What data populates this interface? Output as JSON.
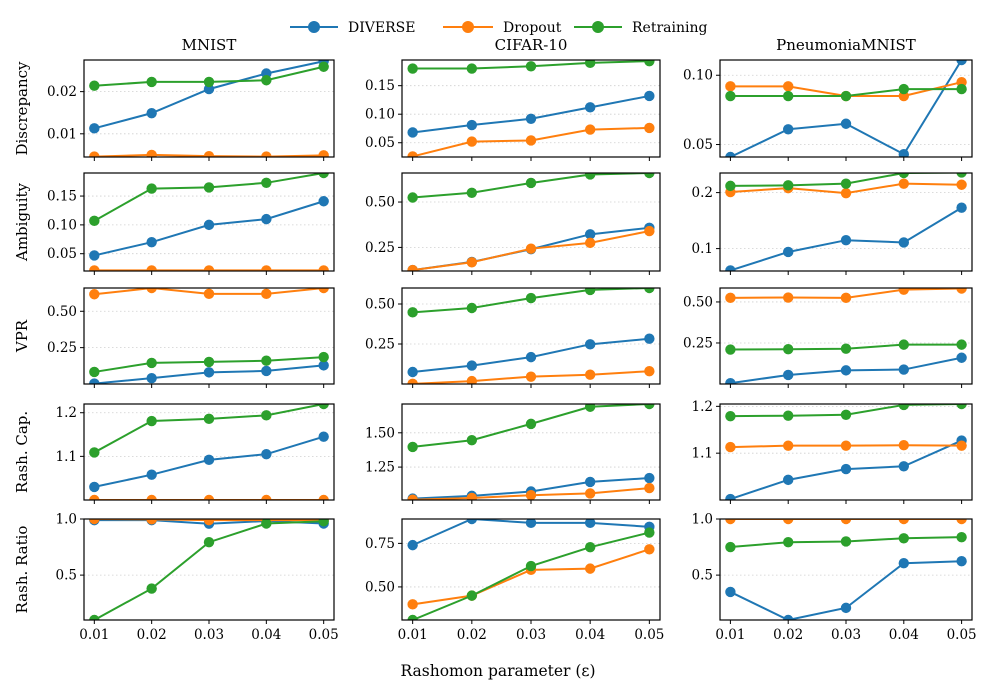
{
  "legend": {
    "placement": "top-center",
    "entries": [
      {
        "name": "DIVERSE",
        "color": "#1f77b4"
      },
      {
        "name": "Dropout",
        "color": "#ff7f0e"
      },
      {
        "name": "Retraining",
        "color": "#2ca02c"
      }
    ]
  },
  "columns": [
    "MNIST",
    "CIFAR-10",
    "PneumoniaMNIST"
  ],
  "rows": [
    "Discrepancy",
    "Ambiguity",
    "VPR",
    "Rash. Cap.",
    "Rash. Ratio"
  ],
  "xlabel": "Rashomon parameter (ε)",
  "x_ticks": [
    "0.01",
    "0.02",
    "0.03",
    "0.04",
    "0.05"
  ],
  "chart_data": [
    {
      "type": "line",
      "row": "Discrepancy",
      "column": "MNIST",
      "grid": "y-dotted",
      "x": [
        0.01,
        0.02,
        0.03,
        0.04,
        0.05
      ],
      "ylim": [
        0.0045,
        0.0275
      ],
      "yticks": [
        {
          "v": 0.01,
          "label": "0.01"
        },
        {
          "v": 0.02,
          "label": "0.02"
        }
      ],
      "series": [
        {
          "name": "DIVERSE",
          "values": [
            0.0113,
            0.0149,
            0.0206,
            0.0243,
            0.0272
          ]
        },
        {
          "name": "Dropout",
          "values": [
            0.0046,
            0.005,
            0.0047,
            0.0046,
            0.0049
          ]
        },
        {
          "name": "Retraining",
          "values": [
            0.0214,
            0.0223,
            0.0223,
            0.0227,
            0.0259
          ]
        }
      ]
    },
    {
      "type": "line",
      "row": "Discrepancy",
      "column": "CIFAR-10",
      "grid": "y-dotted",
      "x": [
        0.01,
        0.02,
        0.03,
        0.04,
        0.05
      ],
      "ylim": [
        0.025,
        0.195
      ],
      "yticks": [
        {
          "v": 0.05,
          "label": "0.05"
        },
        {
          "v": 0.1,
          "label": "0.10"
        },
        {
          "v": 0.15,
          "label": "0.15"
        }
      ],
      "series": [
        {
          "name": "DIVERSE",
          "values": [
            0.068,
            0.081,
            0.092,
            0.112,
            0.132
          ]
        },
        {
          "name": "Dropout",
          "values": [
            0.026,
            0.052,
            0.054,
            0.073,
            0.076
          ]
        },
        {
          "name": "Retraining",
          "values": [
            0.18,
            0.18,
            0.184,
            0.19,
            0.193
          ]
        }
      ]
    },
    {
      "type": "line",
      "row": "Discrepancy",
      "column": "PneumoniaMNIST",
      "grid": "y-dotted",
      "x": [
        0.01,
        0.02,
        0.03,
        0.04,
        0.05
      ],
      "ylim": [
        0.041,
        0.111
      ],
      "yticks": [
        {
          "v": 0.05,
          "label": "0.05"
        },
        {
          "v": 0.1,
          "label": "0.10"
        }
      ],
      "series": [
        {
          "name": "DIVERSE",
          "values": [
            0.041,
            0.061,
            0.065,
            0.043,
            0.111
          ]
        },
        {
          "name": "Dropout",
          "values": [
            0.092,
            0.092,
            0.085,
            0.085,
            0.095
          ]
        },
        {
          "name": "Retraining",
          "values": [
            0.085,
            0.085,
            0.085,
            0.09,
            0.09
          ]
        }
      ]
    },
    {
      "type": "line",
      "row": "Ambiguity",
      "column": "MNIST",
      "grid": "y-dotted",
      "x": [
        0.01,
        0.02,
        0.03,
        0.04,
        0.05
      ],
      "ylim": [
        0.02,
        0.19
      ],
      "yticks": [
        {
          "v": 0.05,
          "label": "0.05"
        },
        {
          "v": 0.1,
          "label": "0.10"
        },
        {
          "v": 0.15,
          "label": "0.15"
        }
      ],
      "series": [
        {
          "name": "DIVERSE",
          "values": [
            0.047,
            0.07,
            0.1,
            0.11,
            0.141
          ]
        },
        {
          "name": "Dropout",
          "values": [
            0.021,
            0.021,
            0.021,
            0.021,
            0.021
          ]
        },
        {
          "name": "Retraining",
          "values": [
            0.107,
            0.163,
            0.165,
            0.173,
            0.19
          ]
        }
      ]
    },
    {
      "type": "line",
      "row": "Ambiguity",
      "column": "CIFAR-10",
      "grid": "y-dotted",
      "x": [
        0.01,
        0.02,
        0.03,
        0.04,
        0.05
      ],
      "ylim": [
        0.12,
        0.66
      ],
      "yticks": [
        {
          "v": 0.25,
          "label": "0.25"
        },
        {
          "v": 0.5,
          "label": "0.50"
        }
      ],
      "series": [
        {
          "name": "DIVERSE",
          "values": [
            0.125,
            0.17,
            0.24,
            0.322,
            0.358
          ]
        },
        {
          "name": "Dropout",
          "values": [
            0.125,
            0.168,
            0.243,
            0.275,
            0.34
          ]
        },
        {
          "name": "Retraining",
          "values": [
            0.525,
            0.551,
            0.605,
            0.652,
            0.66
          ]
        }
      ]
    },
    {
      "type": "line",
      "row": "Ambiguity",
      "column": "PneumoniaMNIST",
      "grid": "y-dotted",
      "x": [
        0.01,
        0.02,
        0.03,
        0.04,
        0.05
      ],
      "ylim": [
        0.06,
        0.235
      ],
      "yticks": [
        {
          "v": 0.1,
          "label": "0.1"
        },
        {
          "v": 0.2,
          "label": "0.2"
        }
      ],
      "series": [
        {
          "name": "DIVERSE",
          "values": [
            0.061,
            0.094,
            0.115,
            0.111,
            0.173
          ]
        },
        {
          "name": "Dropout",
          "values": [
            0.201,
            0.208,
            0.199,
            0.216,
            0.214
          ]
        },
        {
          "name": "Retraining",
          "values": [
            0.212,
            0.213,
            0.216,
            0.235,
            0.236
          ]
        }
      ]
    },
    {
      "type": "line",
      "row": "VPR",
      "column": "MNIST",
      "grid": "y-dotted",
      "x": [
        0.01,
        0.02,
        0.03,
        0.04,
        0.05
      ],
      "ylim": [
        0.0,
        0.66
      ],
      "yticks": [
        {
          "v": 0.25,
          "label": "0.25"
        },
        {
          "v": 0.5,
          "label": "0.50"
        }
      ],
      "series": [
        {
          "name": "DIVERSE",
          "values": [
            0.003,
            0.04,
            0.08,
            0.09,
            0.128
          ]
        },
        {
          "name": "Dropout",
          "values": [
            0.617,
            0.66,
            0.62,
            0.62,
            0.66
          ]
        },
        {
          "name": "Retraining",
          "values": [
            0.083,
            0.145,
            0.152,
            0.16,
            0.185
          ]
        }
      ]
    },
    {
      "type": "line",
      "row": "VPR",
      "column": "CIFAR-10",
      "grid": "y-dotted",
      "x": [
        0.01,
        0.02,
        0.03,
        0.04,
        0.05
      ],
      "ylim": [
        0.0,
        0.6
      ],
      "yticks": [
        {
          "v": 0.25,
          "label": "0.25"
        },
        {
          "v": 0.5,
          "label": "0.50"
        }
      ],
      "series": [
        {
          "name": "DIVERSE",
          "values": [
            0.075,
            0.115,
            0.168,
            0.248,
            0.283
          ]
        },
        {
          "name": "Dropout",
          "values": [
            0.001,
            0.018,
            0.046,
            0.058,
            0.08
          ]
        },
        {
          "name": "Retraining",
          "values": [
            0.448,
            0.475,
            0.537,
            0.588,
            0.6
          ]
        }
      ]
    },
    {
      "type": "line",
      "row": "VPR",
      "column": "PneumoniaMNIST",
      "grid": "y-dotted",
      "x": [
        0.01,
        0.02,
        0.03,
        0.04,
        0.05
      ],
      "ylim": [
        0.0,
        0.585
      ],
      "yticks": [
        {
          "v": 0.25,
          "label": "0.25"
        },
        {
          "v": 0.5,
          "label": "0.50"
        }
      ],
      "series": [
        {
          "name": "DIVERSE",
          "values": [
            0.005,
            0.055,
            0.083,
            0.088,
            0.16
          ]
        },
        {
          "name": "Dropout",
          "values": [
            0.525,
            0.527,
            0.525,
            0.575,
            0.582
          ]
        },
        {
          "name": "Retraining",
          "values": [
            0.21,
            0.212,
            0.215,
            0.24,
            0.24
          ]
        }
      ]
    },
    {
      "type": "line",
      "row": "Rash. Cap.",
      "column": "MNIST",
      "grid": "y-dotted",
      "x": [
        0.01,
        0.02,
        0.03,
        0.04,
        0.05
      ],
      "ylim": [
        1.0,
        1.22
      ],
      "yticks": [
        {
          "v": 1.1,
          "label": "1.1"
        },
        {
          "v": 1.2,
          "label": "1.2"
        }
      ],
      "series": [
        {
          "name": "DIVERSE",
          "values": [
            1.03,
            1.058,
            1.092,
            1.105,
            1.145
          ]
        },
        {
          "name": "Dropout",
          "values": [
            1.0,
            1.0,
            1.0,
            1.0,
            1.0
          ]
        },
        {
          "name": "Retraining",
          "values": [
            1.109,
            1.181,
            1.186,
            1.194,
            1.22
          ]
        }
      ]
    },
    {
      "type": "line",
      "row": "Rash. Cap.",
      "column": "CIFAR-10",
      "grid": "y-dotted",
      "x": [
        0.01,
        0.02,
        0.03,
        0.04,
        0.05
      ],
      "ylim": [
        1.01,
        1.71
      ],
      "yticks": [
        {
          "v": 1.25,
          "label": "1.25"
        },
        {
          "v": 1.5,
          "label": "1.50"
        }
      ],
      "series": [
        {
          "name": "DIVERSE",
          "values": [
            1.02,
            1.04,
            1.072,
            1.142,
            1.17
          ]
        },
        {
          "name": "Dropout",
          "values": [
            1.012,
            1.025,
            1.045,
            1.058,
            1.097
          ]
        },
        {
          "name": "Retraining",
          "values": [
            1.397,
            1.446,
            1.565,
            1.69,
            1.71
          ]
        }
      ]
    },
    {
      "type": "line",
      "row": "Rash. Cap.",
      "column": "PneumoniaMNIST",
      "grid": "y-dotted",
      "x": [
        0.01,
        0.02,
        0.03,
        0.04,
        0.05
      ],
      "ylim": [
        1.0,
        1.205
      ],
      "yticks": [
        {
          "v": 1.1,
          "label": "1.1"
        },
        {
          "v": 1.2,
          "label": "1.2"
        }
      ],
      "series": [
        {
          "name": "DIVERSE",
          "values": [
            1.002,
            1.043,
            1.066,
            1.072,
            1.127
          ]
        },
        {
          "name": "Dropout",
          "values": [
            1.113,
            1.116,
            1.116,
            1.117,
            1.116
          ]
        },
        {
          "name": "Retraining",
          "values": [
            1.179,
            1.18,
            1.182,
            1.203,
            1.205
          ]
        }
      ]
    },
    {
      "type": "line",
      "row": "Rash. Ratio",
      "column": "MNIST",
      "grid": "y-dotted",
      "x": [
        0.01,
        0.02,
        0.03,
        0.04,
        0.05
      ],
      "ylim": [
        0.1,
        1.0
      ],
      "yticks": [
        {
          "v": 0.5,
          "label": "0.5"
        },
        {
          "v": 1.0,
          "label": "1.0"
        }
      ],
      "series": [
        {
          "name": "DIVERSE",
          "values": [
            0.99,
            0.99,
            0.958,
            0.982,
            0.96
          ]
        },
        {
          "name": "Dropout",
          "values": [
            1.0,
            0.997,
            0.99,
            0.99,
            0.99
          ]
        },
        {
          "name": "Retraining",
          "values": [
            0.1,
            0.38,
            0.793,
            0.96,
            0.98
          ]
        }
      ]
    },
    {
      "type": "line",
      "row": "Rash. Ratio",
      "column": "CIFAR-10",
      "grid": "y-dotted",
      "x": [
        0.01,
        0.02,
        0.03,
        0.04,
        0.05
      ],
      "ylim": [
        0.31,
        0.89
      ],
      "yticks": [
        {
          "v": 0.5,
          "label": "0.50"
        },
        {
          "v": 0.75,
          "label": "0.75"
        }
      ],
      "series": [
        {
          "name": "DIVERSE",
          "values": [
            0.74,
            0.89,
            0.868,
            0.868,
            0.845
          ]
        },
        {
          "name": "Dropout",
          "values": [
            0.4,
            0.45,
            0.598,
            0.605,
            0.716
          ]
        },
        {
          "name": "Retraining",
          "values": [
            0.31,
            0.45,
            0.62,
            0.728,
            0.812
          ]
        }
      ]
    },
    {
      "type": "line",
      "row": "Rash. Ratio",
      "column": "PneumoniaMNIST",
      "grid": "y-dotted",
      "x": [
        0.01,
        0.02,
        0.03,
        0.04,
        0.05
      ],
      "ylim": [
        0.1,
        1.0
      ],
      "yticks": [
        {
          "v": 0.5,
          "label": "0.5"
        },
        {
          "v": 1.0,
          "label": "1.0"
        }
      ],
      "series": [
        {
          "name": "DIVERSE",
          "values": [
            0.35,
            0.1,
            0.208,
            0.606,
            0.624
          ]
        },
        {
          "name": "Dropout",
          "values": [
            1.0,
            1.0,
            1.0,
            1.0,
            1.0
          ]
        },
        {
          "name": "Retraining",
          "values": [
            0.75,
            0.793,
            0.8,
            0.828,
            0.838
          ]
        }
      ]
    }
  ]
}
